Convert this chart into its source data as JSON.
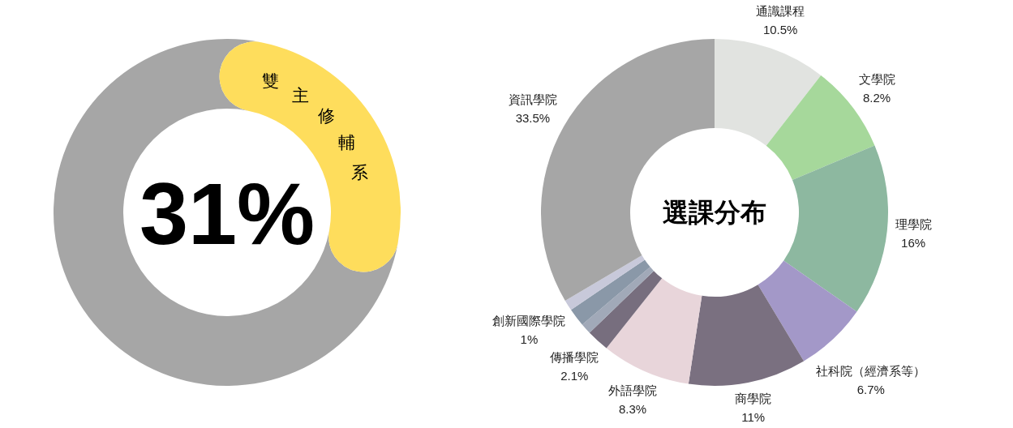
{
  "chart_data": [
    {
      "type": "donut",
      "categories": [
        "雙主修輔系",
        null
      ],
      "values": [
        31,
        69
      ],
      "colors": [
        "#fedd5c",
        "#a6a6a6"
      ],
      "value_labels": [
        "31%",
        null
      ]
    },
    {
      "type": "donut",
      "title": "選課分布",
      "categories": [
        "通識課程",
        "文學院",
        "理學院",
        "社科院（經濟系等）",
        "商學院",
        "外語學院",
        "傳播學院",
        null,
        null,
        "創新國際學院",
        "資訊學院"
      ],
      "values": [
        10.5,
        8.2,
        16,
        6.7,
        11,
        8.3,
        2.1,
        1.0,
        1.7,
        1,
        33.5
      ],
      "colors": [
        "#e1e3e0",
        "#a6d89b",
        "#8db8a0",
        "#a398c8",
        "#7a7080",
        "#e8d5da",
        "#776e7e",
        "#a1a9b8",
        "#8a98a8",
        "#c8c9da",
        "#a6a6a6"
      ],
      "value_labels": [
        "10.5%",
        "8.2%",
        "16%",
        "6.7%",
        "11%",
        "8.3%",
        "2.1%",
        null,
        null,
        "1%",
        "33.5%"
      ]
    }
  ]
}
